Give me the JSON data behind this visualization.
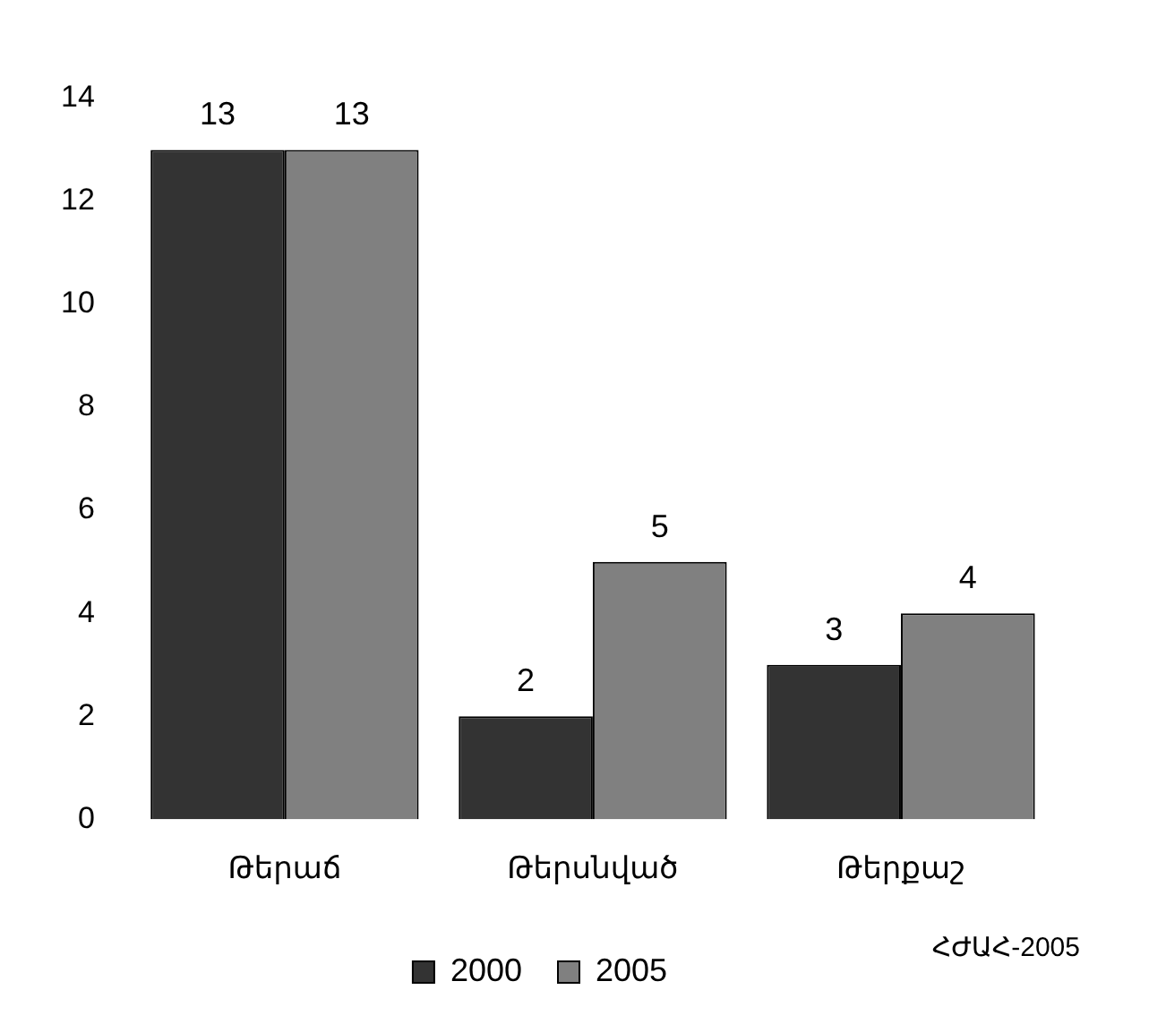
{
  "chart_data": {
    "type": "bar",
    "categories": [
      "Թերաճ",
      "Թերսնված",
      "Թերքաշ"
    ],
    "series": [
      {
        "name": "2000",
        "color": "#333333",
        "values": [
          13,
          2,
          3
        ]
      },
      {
        "name": "2005",
        "color": "#808080",
        "values": [
          13,
          5,
          4
        ]
      }
    ],
    "ylim": [
      0,
      14
    ],
    "yticks": [
      0,
      2,
      4,
      6,
      8,
      10,
      12,
      14
    ],
    "grid": false,
    "legend": "bottom",
    "data_labels": true,
    "annotations": [
      "ՀԺԱՀ-2005"
    ]
  }
}
